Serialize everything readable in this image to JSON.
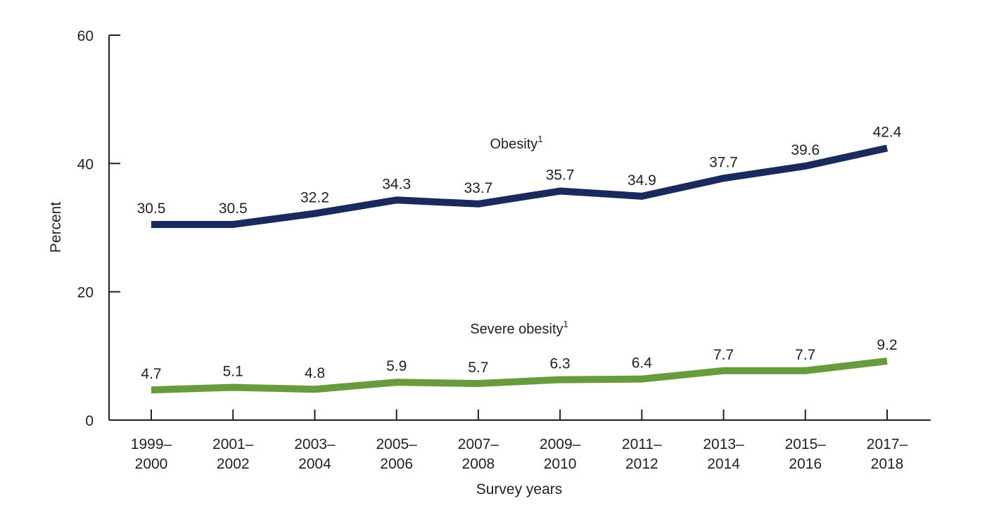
{
  "chart_data": {
    "type": "line",
    "xlabel": "Survey years",
    "ylabel": "Percent",
    "ylim": [
      0,
      60
    ],
    "yticks": [
      "0",
      "20",
      "40",
      "60"
    ],
    "grid": false,
    "categories": [
      [
        "1999–",
        "2000"
      ],
      [
        "2001–",
        "2002"
      ],
      [
        "2003–",
        "2004"
      ],
      [
        "2005–",
        "2006"
      ],
      [
        "2007–",
        "2008"
      ],
      [
        "2009–",
        "2010"
      ],
      [
        "2011–",
        "2012"
      ],
      [
        "2013–",
        "2014"
      ],
      [
        "2015–",
        "2016"
      ],
      [
        "2017–",
        "2018"
      ]
    ],
    "series": [
      {
        "name": "Obesity",
        "footnote": "1",
        "color": "#1b2a5c",
        "values": [
          30.5,
          30.5,
          32.2,
          34.3,
          33.7,
          35.7,
          34.9,
          37.7,
          39.6,
          42.4
        ],
        "labels": [
          "30.5",
          "30.5",
          "32.2",
          "34.3",
          "33.7",
          "35.7",
          "34.9",
          "37.7",
          "39.6",
          "42.4"
        ]
      },
      {
        "name": "Severe obesity",
        "footnote": "1",
        "color": "#6a9a3e",
        "values": [
          4.7,
          5.1,
          4.8,
          5.9,
          5.7,
          6.3,
          6.4,
          7.7,
          7.7,
          9.2
        ],
        "labels": [
          "4.7",
          "5.1",
          "4.8",
          "5.9",
          "5.7",
          "6.3",
          "6.4",
          "7.7",
          "7.7",
          "9.2"
        ]
      }
    ]
  }
}
